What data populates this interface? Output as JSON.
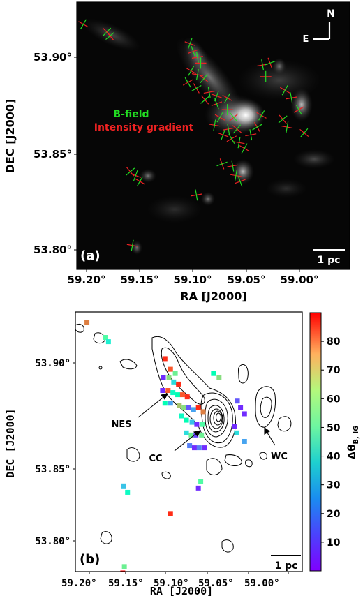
{
  "panel_a": {
    "label": "(a)",
    "xlabel": "RA [J2000]",
    "ylabel": "DEC [J2000]",
    "xticks": [
      "59.20°",
      "59.15°",
      "59.10°",
      "59.05°",
      "59.00°"
    ],
    "yticks": [
      "53.90°",
      "53.85°",
      "53.80°"
    ],
    "compass_n": "N",
    "compass_e": "E",
    "scalebar": "1 pc",
    "legend_bfield": "B-field",
    "legend_gradient": "Intensity gradient",
    "colors": {
      "bfield": "#22dd22",
      "gradient": "#ee2222",
      "background": "#050505"
    }
  },
  "panel_b": {
    "label": "(b)",
    "xlabel": "RA [J2000]",
    "ylabel": "DEC [J2000]",
    "xticks": [
      "59.20°",
      "59.15°",
      "59.10°",
      "59.05°",
      "59.00°"
    ],
    "yticks": [
      "53.90°",
      "53.85°",
      "53.80°"
    ],
    "scalebar": "1 pc",
    "annotations": [
      "NES",
      "CC",
      "WC"
    ],
    "colorbar_label": "Δθ",
    "colorbar_subscript": "B, IG",
    "colorbar_ticks": [
      "80",
      "70",
      "60",
      "50",
      "40",
      "30",
      "20",
      "10"
    ],
    "colorbar_range": [
      0,
      90
    ],
    "colormap": "rainbow"
  },
  "chart_data": [
    {
      "type": "scatter",
      "xlabel": "RA [J2000]",
      "ylabel": "DEC [J2000]",
      "xlim": [
        59.215,
        58.975
      ],
      "ylim": [
        53.792,
        53.927
      ],
      "series": [
        {
          "name": "B-field",
          "points": [
            {
              "x": 59.203,
              "y": 53.917,
              "a": 60
            },
            {
              "x": 59.181,
              "y": 53.913,
              "a": 45
            },
            {
              "x": 59.178,
              "y": 53.911,
              "a": 40
            },
            {
              "x": 59.103,
              "y": 53.907,
              "a": 70
            },
            {
              "x": 59.1,
              "y": 53.903,
              "a": 110
            },
            {
              "x": 59.096,
              "y": 53.9,
              "a": 100
            },
            {
              "x": 59.093,
              "y": 53.897,
              "a": 90
            },
            {
              "x": 59.102,
              "y": 53.893,
              "a": 60
            },
            {
              "x": 59.096,
              "y": 53.891,
              "a": 80
            },
            {
              "x": 59.09,
              "y": 53.889,
              "a": 50
            },
            {
              "x": 59.105,
              "y": 53.887,
              "a": 120
            },
            {
              "x": 59.097,
              "y": 53.884,
              "a": 30
            },
            {
              "x": 59.085,
              "y": 53.882,
              "a": 100
            },
            {
              "x": 59.078,
              "y": 53.88,
              "a": 70
            },
            {
              "x": 59.068,
              "y": 53.879,
              "a": 60
            },
            {
              "x": 59.089,
              "y": 53.878,
              "a": 40
            },
            {
              "x": 59.078,
              "y": 53.876,
              "a": 110
            },
            {
              "x": 59.068,
              "y": 53.873,
              "a": 90
            },
            {
              "x": 59.062,
              "y": 53.869,
              "a": 130
            },
            {
              "x": 59.075,
              "y": 53.869,
              "a": 60
            },
            {
              "x": 59.08,
              "y": 53.865,
              "a": 80
            },
            {
              "x": 59.067,
              "y": 53.863,
              "a": 100
            },
            {
              "x": 59.059,
              "y": 53.863,
              "a": 50
            },
            {
              "x": 59.072,
              "y": 53.86,
              "a": 70
            },
            {
              "x": 59.064,
              "y": 53.858,
              "a": 120
            },
            {
              "x": 59.057,
              "y": 53.856,
              "a": 80
            },
            {
              "x": 59.052,
              "y": 53.853,
              "a": 60
            },
            {
              "x": 59.046,
              "y": 53.86,
              "a": 100
            },
            {
              "x": 59.04,
              "y": 53.864,
              "a": 30
            },
            {
              "x": 59.036,
              "y": 53.87,
              "a": 60
            },
            {
              "x": 59.035,
              "y": 53.896,
              "a": 100
            },
            {
              "x": 59.028,
              "y": 53.897,
              "a": 20
            },
            {
              "x": 59.032,
              "y": 53.89,
              "a": 90
            },
            {
              "x": 59.014,
              "y": 53.883,
              "a": 60
            },
            {
              "x": 59.008,
              "y": 53.879,
              "a": 100
            },
            {
              "x": 59.001,
              "y": 53.873,
              "a": 120
            },
            {
              "x": 59.016,
              "y": 53.868,
              "a": 40
            },
            {
              "x": 59.012,
              "y": 53.864,
              "a": 80
            },
            {
              "x": 58.996,
              "y": 53.861,
              "a": 50
            },
            {
              "x": 59.159,
              "y": 53.841,
              "a": 40
            },
            {
              "x": 59.154,
              "y": 53.839,
              "a": 70
            },
            {
              "x": 59.15,
              "y": 53.836,
              "a": 60
            },
            {
              "x": 59.073,
              "y": 53.845,
              "a": 20
            },
            {
              "x": 59.063,
              "y": 53.844,
              "a": 100
            },
            {
              "x": 59.06,
              "y": 53.839,
              "a": 80
            },
            {
              "x": 59.056,
              "y": 53.836,
              "a": 110
            },
            {
              "x": 59.097,
              "y": 53.829,
              "a": 100
            },
            {
              "x": 59.157,
              "y": 53.803,
              "a": 80
            }
          ]
        },
        {
          "name": "Δθ B, IG",
          "points": [
            {
              "x": 59.203,
              "y": 53.919,
              "v": 75
            },
            {
              "x": 59.18,
              "y": 53.912,
              "v": 50
            },
            {
              "x": 59.176,
              "y": 53.91,
              "v": 35
            },
            {
              "x": 59.105,
              "y": 53.902,
              "v": 85
            },
            {
              "x": 59.098,
              "y": 53.897,
              "v": 80
            },
            {
              "x": 59.092,
              "y": 53.895,
              "v": 55
            },
            {
              "x": 59.107,
              "y": 53.893,
              "v": 5
            },
            {
              "x": 59.1,
              "y": 53.893,
              "v": 60
            },
            {
              "x": 59.094,
              "y": 53.891,
              "v": 30
            },
            {
              "x": 59.088,
              "y": 53.89,
              "v": 85
            },
            {
              "x": 59.108,
              "y": 53.887,
              "v": 5
            },
            {
              "x": 59.101,
              "y": 53.887,
              "v": 80
            },
            {
              "x": 59.095,
              "y": 53.886,
              "v": 40
            },
            {
              "x": 59.089,
              "y": 53.885,
              "v": 45
            },
            {
              "x": 59.083,
              "y": 53.885,
              "v": 80
            },
            {
              "x": 59.077,
              "y": 53.884,
              "v": 85
            },
            {
              "x": 59.105,
              "y": 53.881,
              "v": 45
            },
            {
              "x": 59.098,
              "y": 53.881,
              "v": 20
            },
            {
              "x": 59.087,
              "y": 53.88,
              "v": 65
            },
            {
              "x": 59.081,
              "y": 53.879,
              "v": 60
            },
            {
              "x": 59.075,
              "y": 53.879,
              "v": 10
            },
            {
              "x": 59.069,
              "y": 53.878,
              "v": 20
            },
            {
              "x": 59.063,
              "y": 53.879,
              "v": 85
            },
            {
              "x": 59.057,
              "y": 53.877,
              "v": 75
            },
            {
              "x": 59.084,
              "y": 53.875,
              "v": 40
            },
            {
              "x": 59.078,
              "y": 53.873,
              "v": 45
            },
            {
              "x": 59.071,
              "y": 53.872,
              "v": 25
            },
            {
              "x": 59.065,
              "y": 53.871,
              "v": 5
            },
            {
              "x": 59.058,
              "y": 53.871,
              "v": 50
            },
            {
              "x": 59.078,
              "y": 53.867,
              "v": 30
            },
            {
              "x": 59.072,
              "y": 53.866,
              "v": 55
            },
            {
              "x": 59.066,
              "y": 53.866,
              "v": 8
            },
            {
              "x": 59.059,
              "y": 53.866,
              "v": 55
            },
            {
              "x": 59.074,
              "y": 53.861,
              "v": 15
            },
            {
              "x": 59.068,
              "y": 53.86,
              "v": 5
            },
            {
              "x": 59.062,
              "y": 53.86,
              "v": 15
            },
            {
              "x": 59.055,
              "y": 53.86,
              "v": 5
            },
            {
              "x": 59.044,
              "y": 53.895,
              "v": 45
            },
            {
              "x": 59.037,
              "y": 53.893,
              "v": 60
            },
            {
              "x": 59.014,
              "y": 53.882,
              "v": 10
            },
            {
              "x": 59.01,
              "y": 53.879,
              "v": 5
            },
            {
              "x": 59.005,
              "y": 53.876,
              "v": 5
            },
            {
              "x": 59.018,
              "y": 53.87,
              "v": 5
            },
            {
              "x": 59.015,
              "y": 53.867,
              "v": 30
            },
            {
              "x": 59.005,
              "y": 53.863,
              "v": 20
            },
            {
              "x": 59.157,
              "y": 53.842,
              "v": 25
            },
            {
              "x": 59.152,
              "y": 53.839,
              "v": 40
            },
            {
              "x": 59.06,
              "y": 53.844,
              "v": 50
            },
            {
              "x": 59.063,
              "y": 53.841,
              "v": 5
            },
            {
              "x": 59.098,
              "y": 53.829,
              "v": 85
            },
            {
              "x": 59.156,
              "y": 53.804,
              "v": 55
            },
            {
              "x": 59.158,
              "y": 53.801,
              "v": 90
            }
          ]
        }
      ]
    }
  ]
}
